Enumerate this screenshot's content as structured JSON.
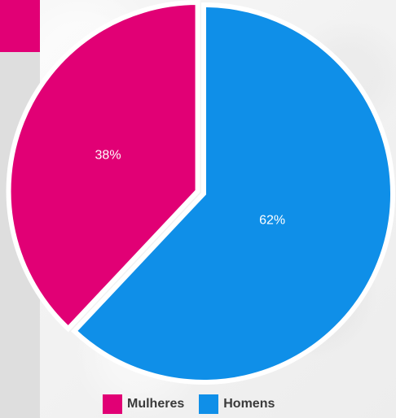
{
  "chart_data": {
    "type": "pie",
    "categories": [
      "Mulheres",
      "Homens"
    ],
    "values": [
      38,
      62
    ],
    "slice_labels": [
      "38%",
      "62%"
    ],
    "colors": [
      "#e10075",
      "#0f8fe8"
    ],
    "legend_position": "bottom",
    "grid": false
  },
  "legend": {
    "items": [
      {
        "label": "Mulheres",
        "color": "#e10075"
      },
      {
        "label": "Homens",
        "color": "#0f8fe8"
      }
    ]
  },
  "decor": {
    "left_panel_color": "#dedede",
    "left_block_color": "#e10075"
  }
}
